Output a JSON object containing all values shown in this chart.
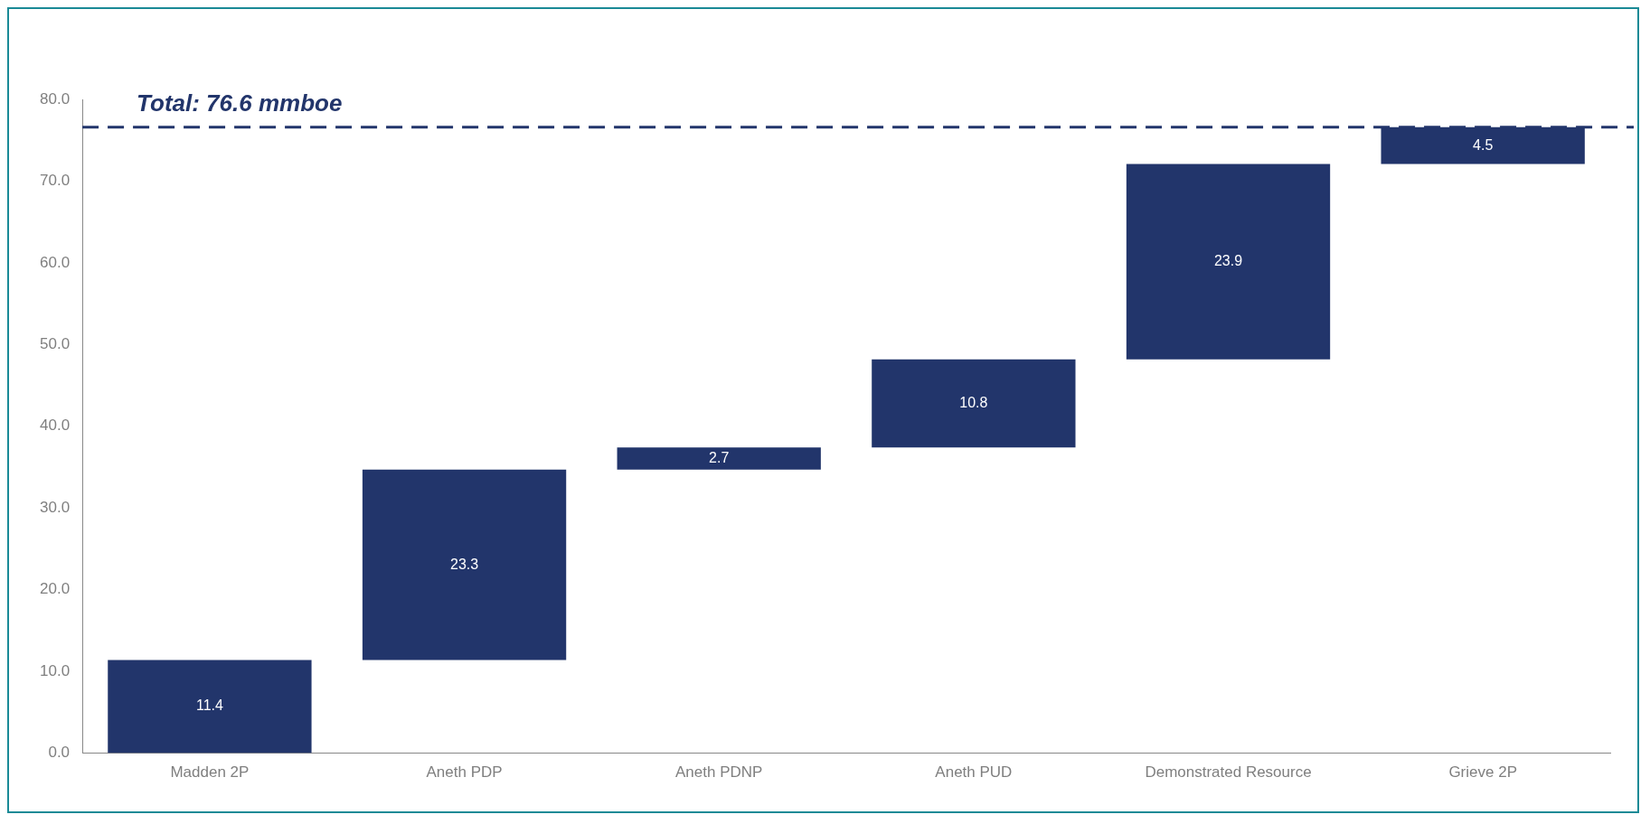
{
  "chart_data": {
    "type": "bar",
    "categories": [
      "Madden 2P",
      "Aneth PDP",
      "Aneth PDNP",
      "Aneth PUD",
      "Demonstrated Resource",
      "Grieve 2P"
    ],
    "values": [
      11.4,
      23.3,
      2.7,
      10.8,
      23.9,
      4.5
    ],
    "base": [
      0,
      11.4,
      34.7,
      37.4,
      48.2,
      72.1
    ],
    "color": "#22356b",
    "ylim": [
      0,
      80
    ],
    "yticks": [
      {
        "value": 0,
        "label": "0.0"
      },
      {
        "value": 10,
        "label": "10.0"
      },
      {
        "value": 20,
        "label": "20.0"
      },
      {
        "value": 30,
        "label": "30.0"
      },
      {
        "value": 40,
        "label": "40.0"
      },
      {
        "value": 50,
        "label": "50.0"
      },
      {
        "value": 60,
        "label": "60.0"
      },
      {
        "value": 70,
        "label": "70.0"
      },
      {
        "value": 80,
        "label": "80.0"
      }
    ],
    "ref_lines": [
      {
        "axis": "y",
        "value": 76.6,
        "label": "Total: 76.6 mmboe",
        "color": "#22356b",
        "line_style": "dashed"
      }
    ],
    "data_labels": true,
    "grid": false,
    "legend": false
  }
}
